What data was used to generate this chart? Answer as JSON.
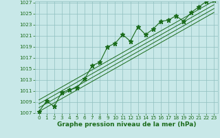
{
  "x": [
    0,
    1,
    2,
    3,
    4,
    5,
    6,
    7,
    8,
    9,
    10,
    11,
    12,
    13,
    14,
    15,
    16,
    17,
    18,
    19,
    20,
    21,
    22,
    23
  ],
  "y": [
    1007.3,
    1009.2,
    1008.2,
    1010.8,
    1011.2,
    1011.6,
    1013.2,
    1015.6,
    1016.2,
    1019.0,
    1019.6,
    1021.2,
    1020.0,
    1022.6,
    1021.2,
    1022.2,
    1023.6,
    1023.8,
    1024.6,
    1023.6,
    1025.2,
    1026.2,
    1027.2,
    1027.4
  ],
  "trend_lines": [
    [
      1007.3,
      1025.2
    ],
    [
      1008.0,
      1025.9
    ],
    [
      1008.7,
      1026.6
    ],
    [
      1009.4,
      1027.3
    ]
  ],
  "ylim_min": 1007,
  "ylim_max": 1027,
  "xlim_min": -0.5,
  "xlim_max": 23.5,
  "yticks": [
    1007,
    1009,
    1011,
    1013,
    1015,
    1017,
    1019,
    1021,
    1023,
    1025,
    1027
  ],
  "xticks": [
    0,
    1,
    2,
    3,
    4,
    5,
    6,
    7,
    8,
    9,
    10,
    11,
    12,
    13,
    14,
    15,
    16,
    17,
    18,
    19,
    20,
    21,
    22,
    23
  ],
  "xlabel": "Graphe pression niveau de la mer (hPa)",
  "line_color": "#1a6b1a",
  "bg_color": "#c8e8e8",
  "grid_color": "#8fbfbf",
  "tick_label_fontsize": 5.2,
  "xlabel_fontsize": 6.5,
  "marker": "*",
  "marker_size": 4.5
}
